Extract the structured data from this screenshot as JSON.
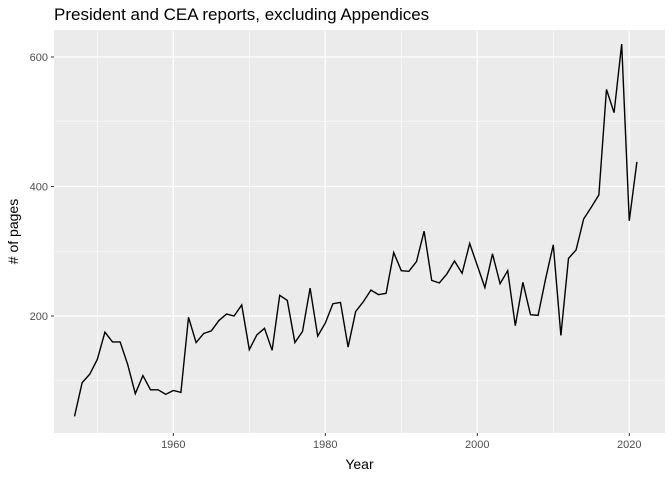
{
  "chart_data": {
    "type": "line",
    "title": "President and CEA reports, excluding Appendices",
    "xlabel": "Year",
    "ylabel": "# of pages",
    "xlim": [
      1944.3,
      2024.7
    ],
    "ylim": [
      19.3,
      641.7
    ],
    "x_ticks": [
      1960,
      1980,
      2000,
      2020
    ],
    "x_minor_ticks": [
      1950,
      1970,
      1990,
      2010
    ],
    "y_ticks": [
      200,
      400,
      600
    ],
    "y_minor_ticks": [
      100,
      300,
      500
    ],
    "grid": true,
    "line_color": "#000000",
    "panel_color": "#ebebeb",
    "grid_color": "#ffffff",
    "series": [
      {
        "x": [
          1947,
          1948,
          1949,
          1950,
          1951,
          1952,
          1953,
          1954,
          1955,
          1956,
          1957,
          1958,
          1959,
          1960,
          1961,
          1962,
          1963,
          1964,
          1965,
          1966,
          1967,
          1968,
          1969,
          1970,
          1971,
          1972,
          1973,
          1974,
          1975,
          1976,
          1977,
          1978,
          1979,
          1980,
          1981,
          1982,
          1983,
          1984,
          1985,
          1986,
          1987,
          1988,
          1989,
          1990,
          1991,
          1992,
          1993,
          1994,
          1995,
          1996,
          1997,
          1998,
          1999,
          2000,
          2001,
          2002,
          2003,
          2004,
          2005,
          2006,
          2007,
          2008,
          2009,
          2010,
          2011,
          2012,
          2013,
          2014,
          2015,
          2016,
          2017,
          2018,
          2019,
          2020,
          2021
        ],
        "values": [
          45,
          97,
          110,
          133,
          175,
          160,
          160,
          125,
          80,
          108,
          86,
          86,
          79,
          85,
          82,
          198,
          159,
          173,
          177,
          193,
          203,
          200,
          217,
          148,
          171,
          181,
          147,
          232,
          224,
          159,
          176,
          243,
          169,
          189,
          219,
          221,
          152,
          207,
          222,
          240,
          233,
          235,
          298,
          270,
          269,
          284,
          331,
          255,
          251,
          265,
          285,
          266,
          312,
          278,
          244,
          296,
          250,
          270,
          185,
          252,
          202,
          201,
          258,
          310,
          170,
          289,
          302,
          350,
          368,
          387,
          550,
          514,
          620,
          347,
          438
        ]
      }
    ]
  }
}
